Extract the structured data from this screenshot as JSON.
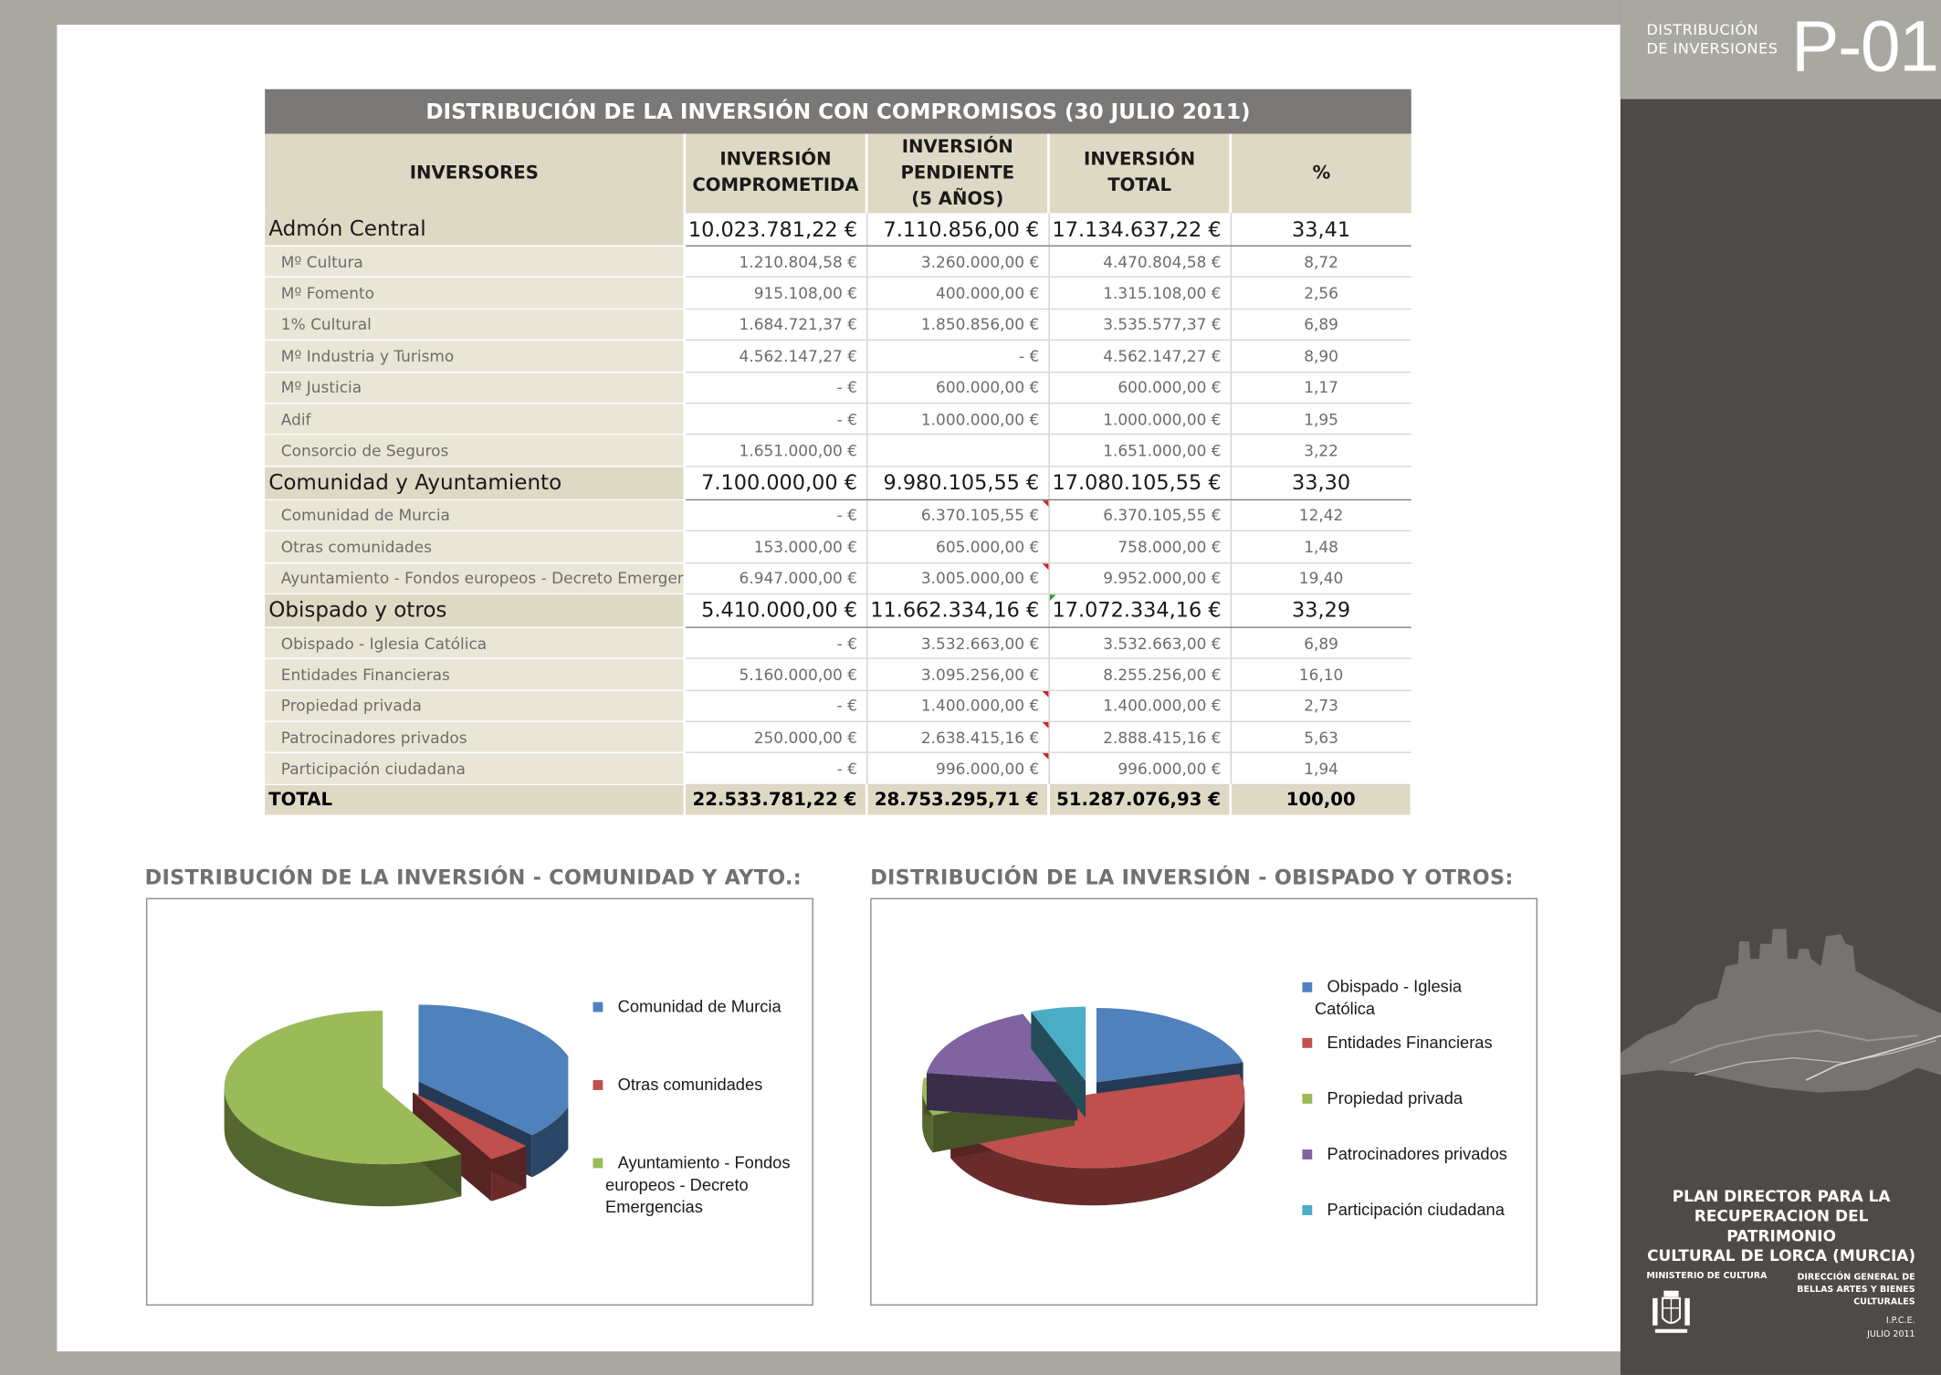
{
  "sidebar": {
    "label_line1": "DISTRIBUCIÓN",
    "label_line2": "DE INVERSIONES",
    "code": "P-01",
    "plan_line1": "PLAN DIRECTOR PARA LA",
    "plan_line2": "RECUPERACION DEL PATRIMONIO",
    "plan_line3": "CULTURAL DE LORCA (MURCIA)",
    "ministry": "MINISTERIO DE CULTURA",
    "dg_line1": "DIRECCIÓN GENERAL DE",
    "dg_line2": "BELLAS ARTES Y BIENES",
    "dg_line3": "CULTURALES",
    "ipce": "I.P.C.E.",
    "date": "JULIO 2011"
  },
  "table": {
    "title": "DISTRIBUCIÓN DE LA INVERSIÓN CON COMPROMISOS (30 JULIO 2011)",
    "headers": {
      "inversores": "INVERSORES",
      "comprometida_1": "INVERSIÓN",
      "comprometida_2": "COMPROMETIDA",
      "pendiente_1": "INVERSIÓN",
      "pendiente_2": "PENDIENTE",
      "pendiente_3": "(5 AÑOS)",
      "total": "INVERSIÓN TOTAL",
      "pct": "%"
    },
    "rows": [
      {
        "name": "Admón Central",
        "comp": "10.023.781,22 €",
        "pend": "7.110.856,00 €",
        "total": "17.134.637,22 €",
        "pct": "33,41"
      },
      {
        "name": "Mº Cultura",
        "comp": "1.210.804,58 €",
        "pend": "3.260.000,00 €",
        "total": "4.470.804,58 €",
        "pct": "8,72"
      },
      {
        "name": "Mº Fomento",
        "comp": "915.108,00 €",
        "pend": "400.000,00 €",
        "total": "1.315.108,00 €",
        "pct": "2,56"
      },
      {
        "name": "1% Cultural",
        "comp": "1.684.721,37 €",
        "pend": "1.850.856,00 €",
        "total": "3.535.577,37 €",
        "pct": "6,89"
      },
      {
        "name": "Mº Industria y Turismo",
        "comp": "4.562.147,27 €",
        "pend": "-    €",
        "total": "4.562.147,27 €",
        "pct": "8,90"
      },
      {
        "name": "Mº Justicia",
        "comp": "-    €",
        "pend": "600.000,00 €",
        "total": "600.000,00 €",
        "pct": "1,17"
      },
      {
        "name": "Adif",
        "comp": "-    €",
        "pend": "1.000.000,00 €",
        "total": "1.000.000,00 €",
        "pct": "1,95"
      },
      {
        "name": "Consorcio de Seguros",
        "comp": "1.651.000,00 €",
        "pend": "",
        "total": "1.651.000,00 €",
        "pct": "3,22"
      },
      {
        "name": "Comunidad y Ayuntamiento",
        "comp": "7.100.000,00 €",
        "pend": "9.980.105,55 €",
        "total": "17.080.105,55 €",
        "pct": "33,30"
      },
      {
        "name": "Comunidad de Murcia",
        "comp": "-    €",
        "pend": "6.370.105,55 €",
        "total": "6.370.105,55 €",
        "pct": "12,42"
      },
      {
        "name": "Otras comunidades",
        "comp": "153.000,00 €",
        "pend": "605.000,00 €",
        "total": "758.000,00 €",
        "pct": "1,48"
      },
      {
        "name": "Ayuntamiento - Fondos europeos - Decreto Emergencias",
        "comp": "6.947.000,00 €",
        "pend": "3.005.000,00 €",
        "total": "9.952.000,00 €",
        "pct": "19,40"
      },
      {
        "name": "Obispado y otros",
        "comp": "5.410.000,00 €",
        "pend": "11.662.334,16 €",
        "total": "17.072.334,16 €",
        "pct": "33,29"
      },
      {
        "name": "Obispado - Iglesia Católica",
        "comp": "-    €",
        "pend": "3.532.663,00 €",
        "total": "3.532.663,00 €",
        "pct": "6,89"
      },
      {
        "name": "Entidades Financieras",
        "comp": "5.160.000,00 €",
        "pend": "3.095.256,00 €",
        "total": "8.255.256,00 €",
        "pct": "16,10"
      },
      {
        "name": "Propiedad privada",
        "comp": "-    €",
        "pend": "1.400.000,00 €",
        "total": "1.400.000,00 €",
        "pct": "2,73"
      },
      {
        "name": "Patrocinadores privados",
        "comp": "250.000,00 €",
        "pend": "2.638.415,16 €",
        "total": "2.888.415,16 €",
        "pct": "5,63"
      },
      {
        "name": "Participación ciudadana",
        "comp": "-    €",
        "pend": "996.000,00 €",
        "total": "996.000,00 €",
        "pct": "1,94"
      }
    ],
    "total": {
      "name": "TOTAL",
      "comp": "22.533.781,22 €",
      "pend": "28.753.295,71 €",
      "total": "51.287.076,93 €",
      "pct": "100,00"
    }
  },
  "chart_titles": {
    "left": "DISTRIBUCIÓN DE LA INVERSIÓN - COMUNIDAD Y AYTO.:",
    "right": "DISTRIBUCIÓN DE LA INVERSIÓN - OBISPADO Y OTROS:"
  },
  "chart_data": [
    {
      "type": "pie",
      "title": "DISTRIBUCIÓN DE LA INVERSIÓN - COMUNIDAD Y AYTO.:",
      "categories": [
        "Comunidad de Murcia",
        "Otras comunidades",
        "Ayuntamiento - Fondos europeos - Decreto Emergencias"
      ],
      "values": [
        12.42,
        1.48,
        19.4
      ],
      "colors": [
        "#4f81bd",
        "#c0504d",
        "#9bbb59"
      ],
      "legend_lines": [
        [
          "Comunidad de Murcia"
        ],
        [
          "Otras comunidades"
        ],
        [
          "Ayuntamiento - Fondos",
          "europeos - Decreto",
          "Emergencias"
        ]
      ],
      "legend": "right",
      "exploded": true
    },
    {
      "type": "pie",
      "title": "DISTRIBUCIÓN DE LA INVERSIÓN - OBISPADO Y OTROS:",
      "categories": [
        "Obispado - Iglesia Católica",
        "Entidades Financieras",
        "Propiedad privada",
        "Patrocinadores privados",
        "Participación ciudadana"
      ],
      "values": [
        6.89,
        16.1,
        2.73,
        5.63,
        1.94
      ],
      "colors": [
        "#4f81bd",
        "#c0504d",
        "#9bbb59",
        "#8064a2",
        "#4bacc6"
      ],
      "legend_lines": [
        [
          "Obispado - Iglesia",
          "Católica"
        ],
        [
          "Entidades Financieras"
        ],
        [
          "Propiedad privada"
        ],
        [
          "Patrocinadores privados"
        ],
        [
          "Participación ciudadana"
        ]
      ],
      "legend": "right",
      "exploded": true
    }
  ]
}
